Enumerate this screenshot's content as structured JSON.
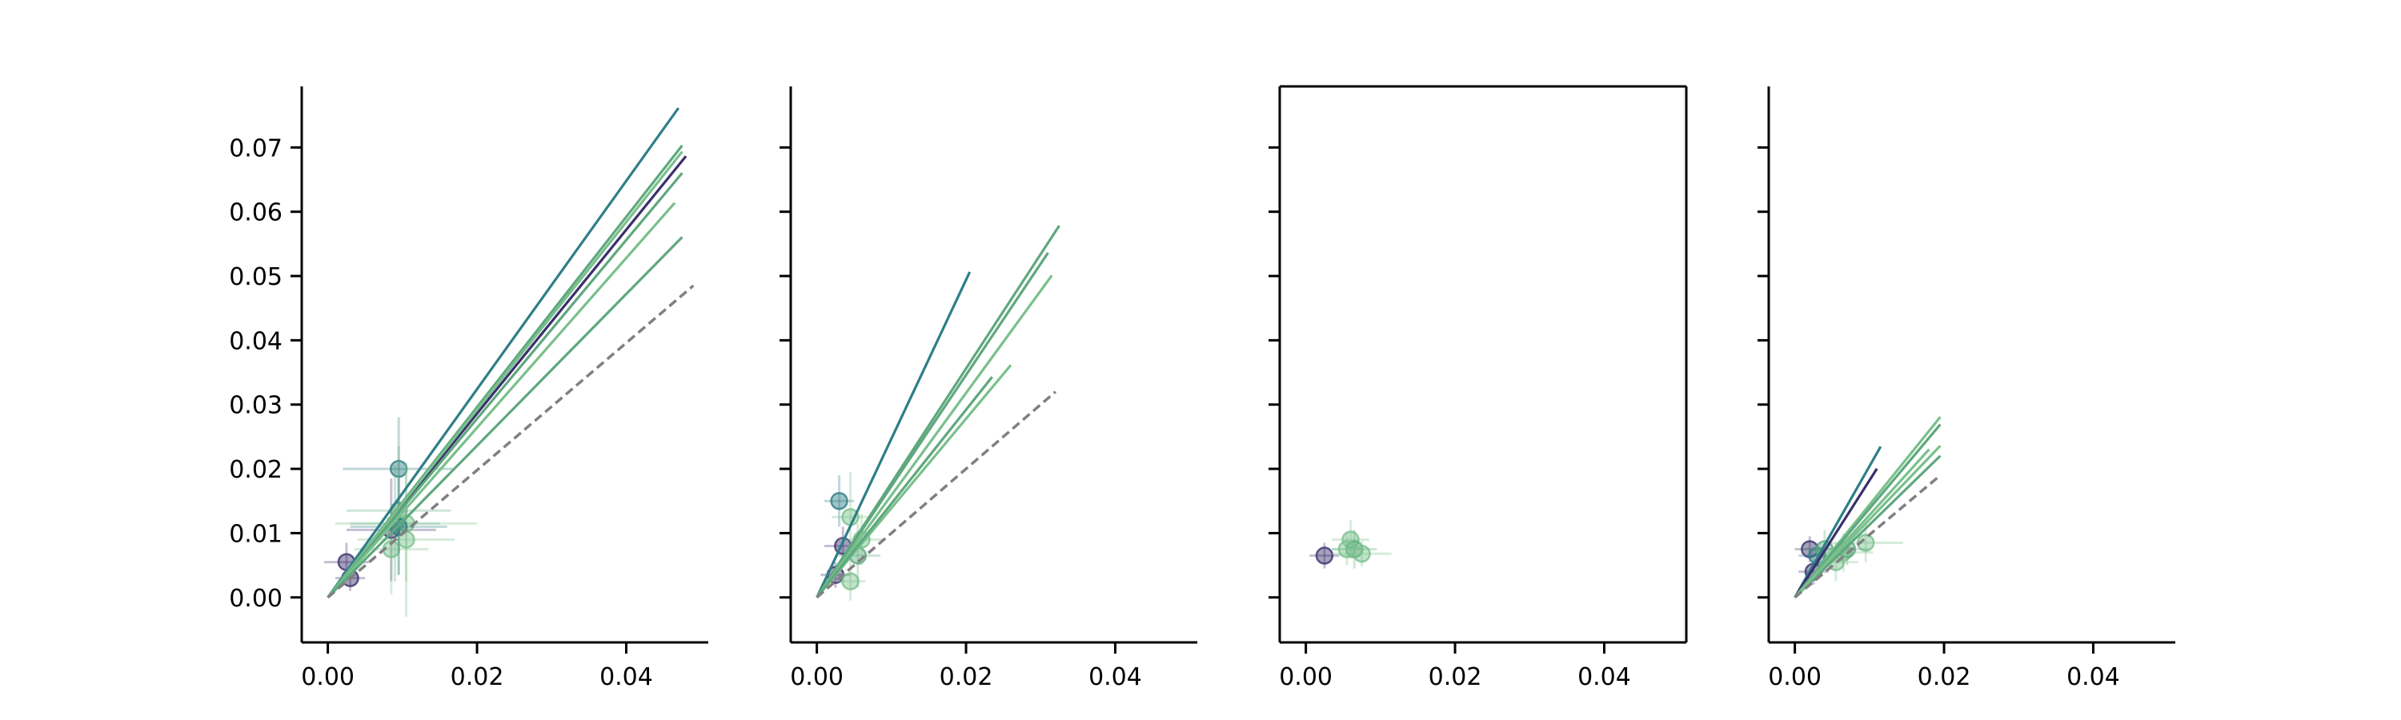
{
  "colors": {
    "dark": "#3b2f6e",
    "teal": "#2e7e86",
    "green": "#5fa87e",
    "lightgreen": "#79c08c",
    "reference": "#808080"
  },
  "chart_data": [
    {
      "type": "scatter",
      "xlim": [
        -0.0035,
        0.051
      ],
      "ylim": [
        -0.007,
        0.0795
      ],
      "xticks": [
        "0.00",
        "0.02",
        "0.04"
      ],
      "yticks": [
        "0.00",
        "0.01",
        "0.02",
        "0.03",
        "0.04",
        "0.05",
        "0.06",
        "0.07"
      ],
      "show_ytick_labels": true,
      "frame": "left-bottom",
      "reference_line": {
        "x": [
          0,
          0.049
        ],
        "y": [
          0,
          0.0485
        ],
        "style": "dashed",
        "color": "#808080"
      },
      "fit_lines": [
        {
          "x_end": 0.047,
          "slope": 1.62,
          "color": "#2e7e86"
        },
        {
          "x_end": 0.048,
          "slope": 1.43,
          "color": "#3b2f6e"
        },
        {
          "x_end": 0.0475,
          "slope": 1.48,
          "color": "#5fa87e"
        },
        {
          "x_end": 0.0475,
          "slope": 1.46,
          "color": "#79c08c"
        },
        {
          "x_end": 0.0475,
          "slope": 1.39,
          "color": "#5fa87e"
        },
        {
          "x_end": 0.0465,
          "slope": 1.32,
          "color": "#79c08c"
        },
        {
          "x_end": 0.0475,
          "slope": 1.18,
          "color": "#5fa87e"
        }
      ],
      "points": [
        {
          "x": 0.0025,
          "y": 0.0055,
          "xerr": 0.003,
          "yerr": 0.003,
          "color": "#3b2f6e"
        },
        {
          "x": 0.003,
          "y": 0.003,
          "xerr": 0.002,
          "yerr": 0.002,
          "color": "#3b2f6e"
        },
        {
          "x": 0.0085,
          "y": 0.0105,
          "xerr": 0.006,
          "yerr": 0.008,
          "color": "#3b2f6e"
        },
        {
          "x": 0.0095,
          "y": 0.02,
          "xerr": 0.0075,
          "yerr": 0.008,
          "color": "#2e7e86"
        },
        {
          "x": 0.0095,
          "y": 0.0135,
          "xerr": 0.007,
          "yerr": 0.01,
          "color": "#5fa87e"
        },
        {
          "x": 0.0105,
          "y": 0.009,
          "xerr": 0.0065,
          "yerr": 0.012,
          "color": "#79c08c"
        },
        {
          "x": 0.009,
          "y": 0.0115,
          "xerr": 0.006,
          "yerr": 0.009,
          "color": "#5fa87e"
        },
        {
          "x": 0.0105,
          "y": 0.0115,
          "xerr": 0.0095,
          "yerr": 0.009,
          "color": "#79c08c"
        },
        {
          "x": 0.0085,
          "y": 0.0075,
          "xerr": 0.005,
          "yerr": 0.007,
          "color": "#79c08c"
        },
        {
          "x": 0.0095,
          "y": 0.011,
          "xerr": 0.0065,
          "yerr": 0.0075,
          "color": "#2e7e86"
        }
      ]
    },
    {
      "type": "scatter",
      "xlim": [
        -0.0035,
        0.051
      ],
      "ylim": [
        -0.007,
        0.0795
      ],
      "xticks": [
        "0.00",
        "0.02",
        "0.04"
      ],
      "yticks": [
        "0.00",
        "0.01",
        "0.02",
        "0.03",
        "0.04",
        "0.05",
        "0.06",
        "0.07"
      ],
      "show_ytick_labels": false,
      "frame": "left-bottom",
      "reference_line": {
        "x": [
          0,
          0.032
        ],
        "y": [
          0,
          0.032
        ],
        "style": "dashed",
        "color": "#808080"
      },
      "fit_lines": [
        {
          "x_end": 0.0205,
          "slope": 2.47,
          "color": "#2e7e86"
        },
        {
          "x_end": 0.0325,
          "slope": 1.78,
          "color": "#5fa87e"
        },
        {
          "x_end": 0.031,
          "slope": 1.73,
          "color": "#5fa87e"
        },
        {
          "x_end": 0.0315,
          "slope": 1.59,
          "color": "#79c08c"
        },
        {
          "x_end": 0.026,
          "slope": 1.39,
          "color": "#79c08c"
        },
        {
          "x_end": 0.0235,
          "slope": 1.46,
          "color": "#5fa87e"
        }
      ],
      "points": [
        {
          "x": 0.003,
          "y": 0.015,
          "xerr": 0.002,
          "yerr": 0.004,
          "color": "#2e7e86"
        },
        {
          "x": 0.0035,
          "y": 0.008,
          "xerr": 0.0025,
          "yerr": 0.003,
          "color": "#3b2f6e"
        },
        {
          "x": 0.0025,
          "y": 0.0035,
          "xerr": 0.002,
          "yerr": 0.002,
          "color": "#3b2f6e"
        },
        {
          "x": 0.0045,
          "y": 0.0125,
          "xerr": 0.0025,
          "yerr": 0.007,
          "color": "#79c08c"
        },
        {
          "x": 0.0055,
          "y": 0.0065,
          "xerr": 0.003,
          "yerr": 0.005,
          "color": "#5fa87e"
        },
        {
          "x": 0.0045,
          "y": 0.0025,
          "xerr": 0.002,
          "yerr": 0.003,
          "color": "#79c08c"
        },
        {
          "x": 0.006,
          "y": 0.009,
          "xerr": 0.003,
          "yerr": 0.004,
          "color": "#79c08c"
        }
      ]
    },
    {
      "type": "scatter",
      "xlim": [
        -0.0035,
        0.051
      ],
      "ylim": [
        -0.007,
        0.0795
      ],
      "xticks": [
        "0.00",
        "0.02",
        "0.04"
      ],
      "yticks": [
        "0.00",
        "0.01",
        "0.02",
        "0.03",
        "0.04",
        "0.05",
        "0.06",
        "0.07"
      ],
      "show_ytick_labels": false,
      "frame": "box",
      "reference_line": null,
      "fit_lines": [],
      "points": [
        {
          "x": 0.0025,
          "y": 0.0065,
          "xerr": 0.002,
          "yerr": 0.002,
          "color": "#3b2f6e"
        },
        {
          "x": 0.006,
          "y": 0.009,
          "xerr": 0.0025,
          "yerr": 0.003,
          "color": "#79c08c"
        },
        {
          "x": 0.0065,
          "y": 0.0075,
          "xerr": 0.003,
          "yerr": 0.003,
          "color": "#5fa87e"
        },
        {
          "x": 0.0075,
          "y": 0.0068,
          "xerr": 0.004,
          "yerr": 0.002,
          "color": "#79c08c"
        },
        {
          "x": 0.0055,
          "y": 0.0075,
          "xerr": 0.002,
          "yerr": 0.0025,
          "color": "#79c08c"
        }
      ]
    },
    {
      "type": "scatter",
      "xlim": [
        -0.0035,
        0.051
      ],
      "ylim": [
        -0.007,
        0.0795
      ],
      "xticks": [
        "0.00",
        "0.02",
        "0.04"
      ],
      "yticks": [
        "0.00",
        "0.01",
        "0.02",
        "0.03",
        "0.04",
        "0.05",
        "0.06",
        "0.07"
      ],
      "show_ytick_labels": false,
      "frame": "left-bottom",
      "reference_line": {
        "x": [
          0,
          0.0195
        ],
        "y": [
          0,
          0.019
        ],
        "style": "dashed",
        "color": "#808080"
      },
      "fit_lines": [
        {
          "x_end": 0.0115,
          "slope": 2.04,
          "color": "#2e7e86"
        },
        {
          "x_end": 0.011,
          "slope": 1.82,
          "color": "#3b2f6e"
        },
        {
          "x_end": 0.0195,
          "slope": 1.44,
          "color": "#79c08c"
        },
        {
          "x_end": 0.0195,
          "slope": 1.38,
          "color": "#5fa87e"
        },
        {
          "x_end": 0.0195,
          "slope": 1.21,
          "color": "#79c08c"
        },
        {
          "x_end": 0.0195,
          "slope": 1.13,
          "color": "#5fa87e"
        },
        {
          "x_end": 0.018,
          "slope": 1.28,
          "color": "#79c08c"
        }
      ],
      "points": [
        {
          "x": 0.002,
          "y": 0.0075,
          "xerr": 0.002,
          "yerr": 0.002,
          "color": "#3b2f6e"
        },
        {
          "x": 0.0025,
          "y": 0.004,
          "xerr": 0.002,
          "yerr": 0.002,
          "color": "#3b2f6e"
        },
        {
          "x": 0.003,
          "y": 0.0065,
          "xerr": 0.0025,
          "yerr": 0.002,
          "color": "#2e7e86"
        },
        {
          "x": 0.004,
          "y": 0.0075,
          "xerr": 0.003,
          "yerr": 0.003,
          "color": "#5fa87e"
        },
        {
          "x": 0.0055,
          "y": 0.0055,
          "xerr": 0.003,
          "yerr": 0.003,
          "color": "#79c08c"
        },
        {
          "x": 0.0065,
          "y": 0.007,
          "xerr": 0.004,
          "yerr": 0.003,
          "color": "#79c08c"
        },
        {
          "x": 0.0095,
          "y": 0.0085,
          "xerr": 0.005,
          "yerr": 0.003,
          "color": "#79c08c"
        },
        {
          "x": 0.007,
          "y": 0.0075,
          "xerr": 0.003,
          "yerr": 0.0025,
          "color": "#5fa87e"
        }
      ]
    }
  ]
}
